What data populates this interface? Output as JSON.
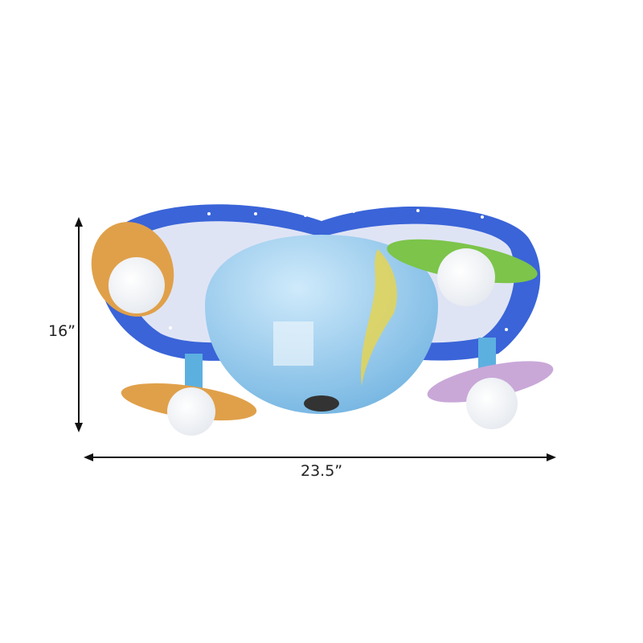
{
  "dimensions": {
    "height_label": "16”",
    "width_label": "23.5”"
  },
  "product": {
    "description_colors": {
      "frame": "#3a64d8",
      "frame_inner": "#dfe4f5",
      "globe": "#8ec9ec",
      "ring_orange": "#e0a04a",
      "ring_green": "#7cc44a",
      "bulb": "#ffffff"
    }
  }
}
